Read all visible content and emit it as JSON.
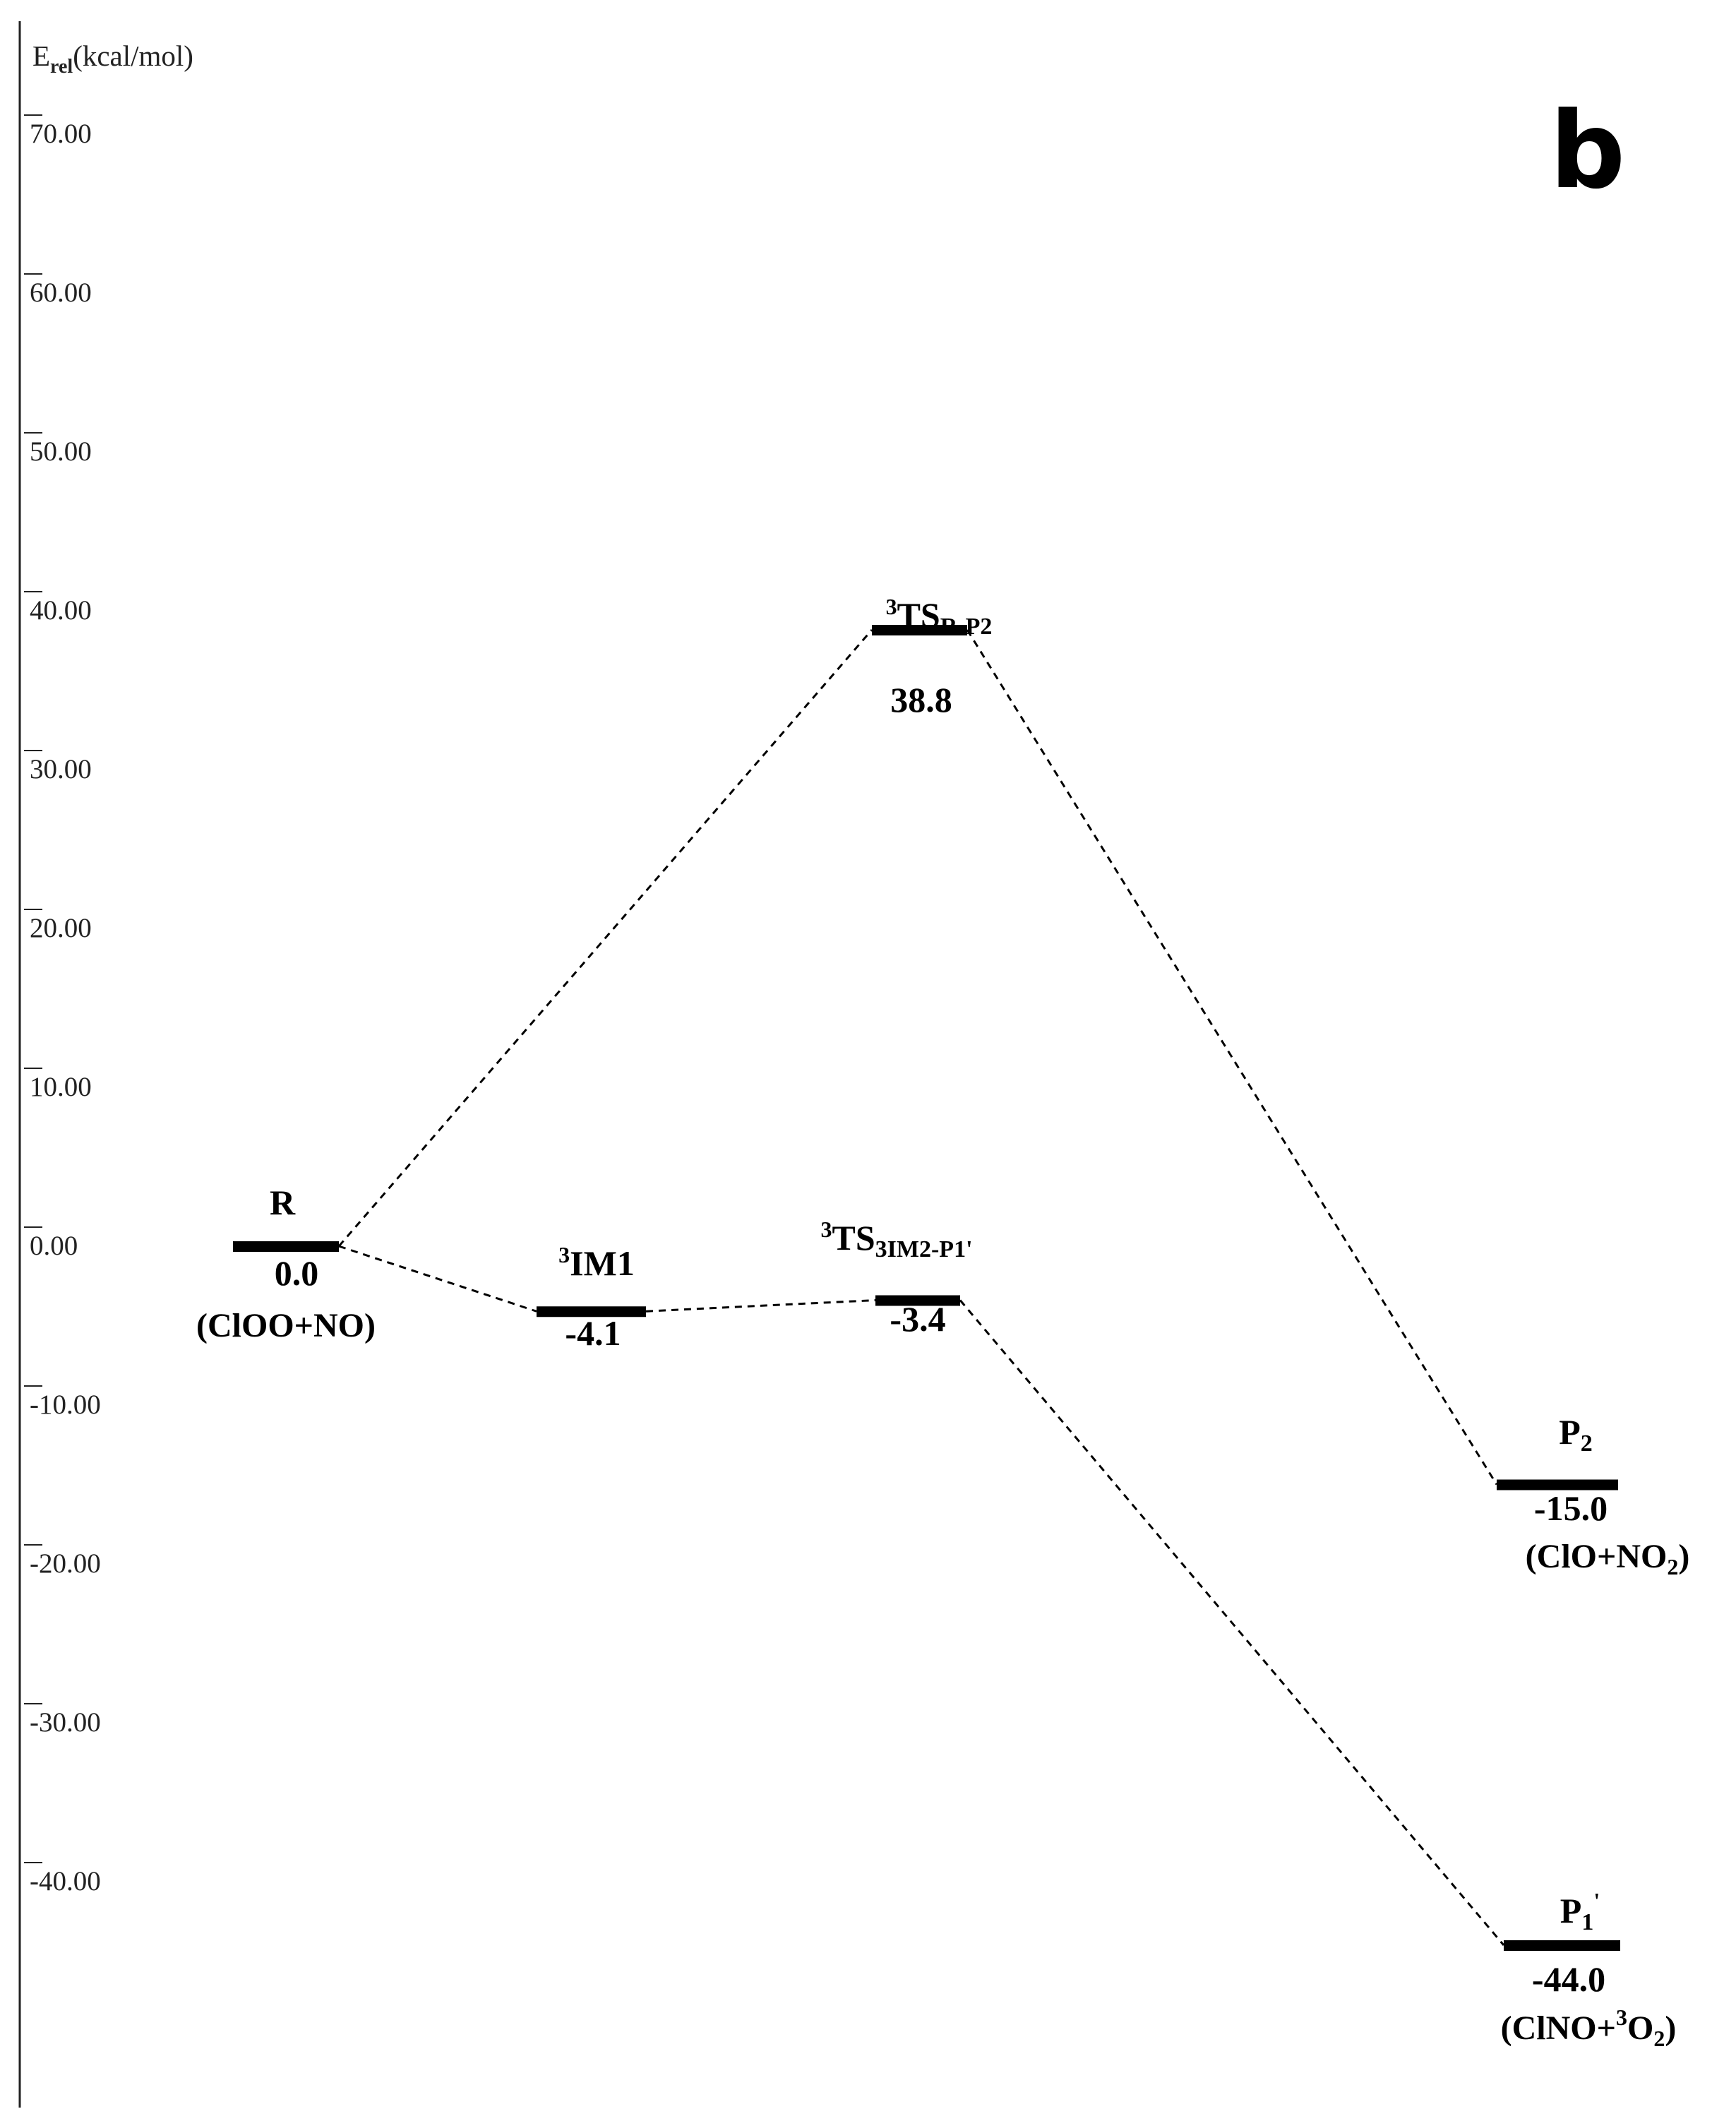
{
  "axis": {
    "title_main": "E",
    "title_sub": "rel",
    "title_unit": "(kcal/mol)",
    "ticks": [
      {
        "value": 70,
        "label": "70.00"
      },
      {
        "value": 60,
        "label": "60.00"
      },
      {
        "value": 50,
        "label": "50.00"
      },
      {
        "value": 40,
        "label": "40.00"
      },
      {
        "value": 30,
        "label": "30.00"
      },
      {
        "value": 20,
        "label": "20.00"
      },
      {
        "value": 10,
        "label": "10.00"
      },
      {
        "value": 0,
        "label": "0.00"
      },
      {
        "value": -10,
        "label": "-10.00"
      },
      {
        "value": -20,
        "label": "-20.00"
      },
      {
        "value": -30,
        "label": "-30.00"
      },
      {
        "value": -40,
        "label": "-40.00"
      }
    ]
  },
  "panel_label": "b",
  "states": {
    "R": {
      "energy": 0.0,
      "value_label": "0.0",
      "name": "R",
      "species": "(ClOO+NO)"
    },
    "IM1": {
      "energy": -4.1,
      "value_label": "-4.1",
      "name_sup": "3",
      "name": "IM1"
    },
    "TS_R_P2": {
      "energy": 38.8,
      "value_label": "38.8",
      "name_sup": "3",
      "name": "TS",
      "name_sub": "R-P2"
    },
    "TS_IM2_P1": {
      "energy": -3.4,
      "value_label": "-3.4",
      "name_sup": "3",
      "name": "TS",
      "name_sub": "3IM2-P1'"
    },
    "P2": {
      "energy": -15.0,
      "value_label": "-15.0",
      "name": "P",
      "name_sub": "2",
      "species_a": "(ClO+NO",
      "species_sub": "2",
      "species_b": ")"
    },
    "P1p": {
      "energy": -44.0,
      "value_label": "-44.0",
      "name": "P",
      "name_sub": "1",
      "name_prime": "'",
      "species_a": "(ClNO+",
      "species_sup": "3",
      "species_mid": "O",
      "species_sub": "2",
      "species_b": ")"
    }
  },
  "connections": [
    [
      "R",
      "TS_R_P2"
    ],
    [
      "TS_R_P2",
      "P2"
    ],
    [
      "R",
      "IM1"
    ],
    [
      "IM1",
      "TS_IM2_P1"
    ],
    [
      "TS_IM2_P1",
      "P1p"
    ]
  ]
}
